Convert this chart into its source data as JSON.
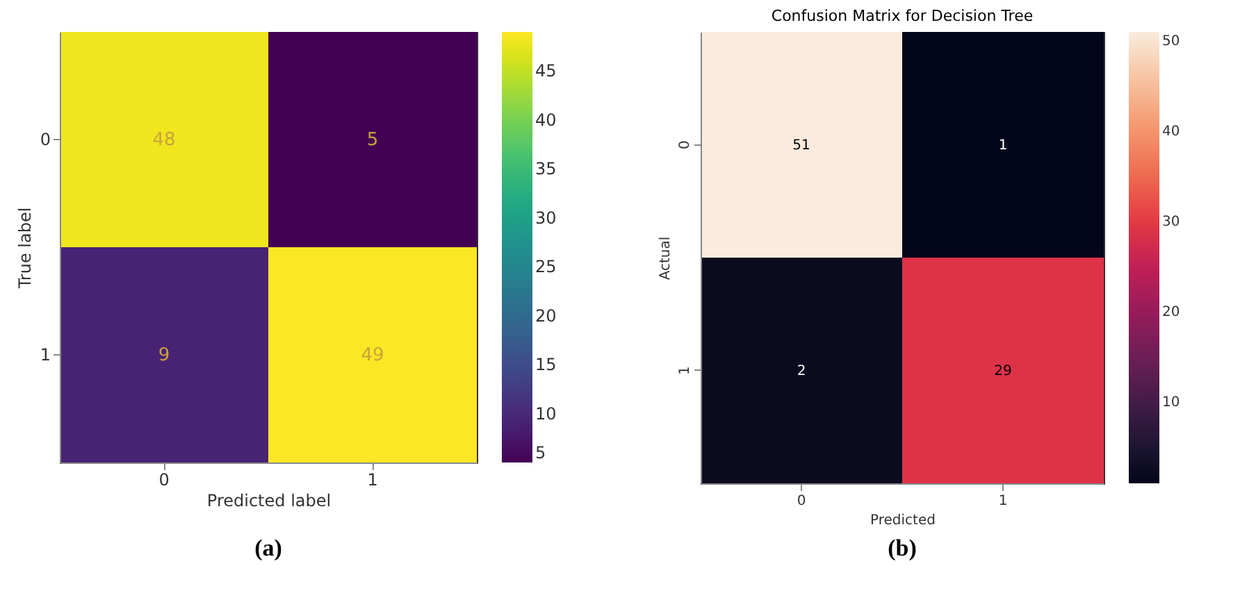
{
  "chart_data": [
    {
      "type": "heatmap",
      "xlabel": "Predicted label",
      "ylabel": "True label",
      "categories": [
        "0",
        "1"
      ],
      "y_categories": [
        "0",
        "1"
      ],
      "cells": [
        [
          48,
          5
        ],
        [
          9,
          49
        ]
      ],
      "data_labels": true,
      "clim": [
        5,
        49
      ],
      "cticks": [
        5,
        10,
        15,
        20,
        25,
        30,
        35,
        40,
        45
      ],
      "annotations": [
        "(a)"
      ]
    },
    {
      "type": "heatmap",
      "title": "Confusion Matrix for Decision Tree",
      "xlabel": "Predicted",
      "ylabel": "Actual",
      "categories": [
        "0",
        "1"
      ],
      "y_categories": [
        "0",
        "1"
      ],
      "cells": [
        [
          51,
          1
        ],
        [
          2,
          29
        ]
      ],
      "data_labels": true,
      "clim": [
        1,
        51
      ],
      "cticks": [
        10,
        20,
        30,
        40,
        50
      ],
      "annotations": [
        "(b)"
      ]
    }
  ]
}
